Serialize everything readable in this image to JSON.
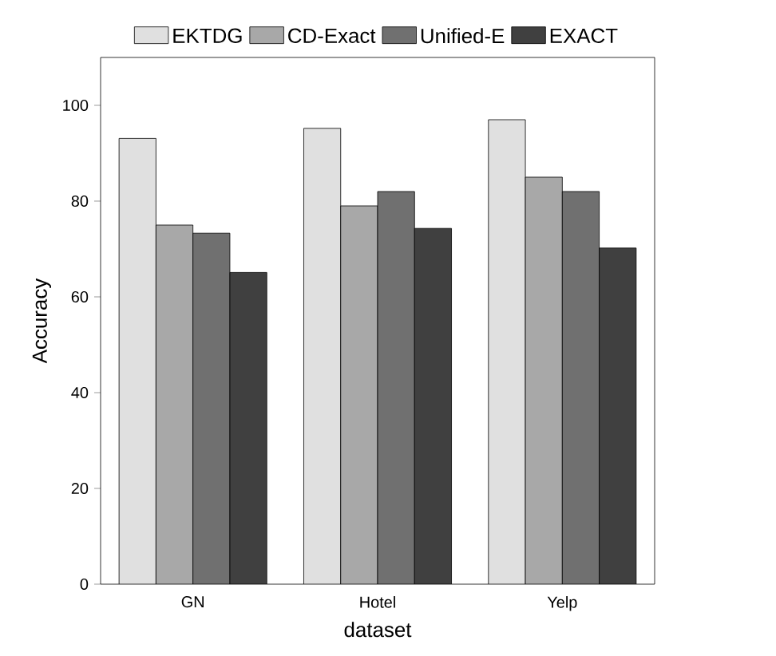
{
  "chart_data": {
    "type": "bar",
    "xlabel": "dataset",
    "ylabel": "Accuracy",
    "categories": [
      "GN",
      "Hotel",
      "Yelp"
    ],
    "series": [
      {
        "name": "EKTDG",
        "color": "#e0e0e0",
        "values": [
          93.1,
          95.2,
          97
        ]
      },
      {
        "name": "CD-Exact",
        "color": "#a8a8a8",
        "values": [
          75,
          79,
          85
        ]
      },
      {
        "name": "Unified-E",
        "color": "#707070",
        "values": [
          73.3,
          82,
          82
        ]
      },
      {
        "name": "EXACT",
        "color": "#404040",
        "values": [
          65.1,
          74.3,
          70.2
        ]
      }
    ],
    "ylim": [
      0,
      110
    ],
    "yticks": [
      0,
      20,
      40,
      60,
      80,
      100
    ],
    "grid": false,
    "legend": "top"
  }
}
